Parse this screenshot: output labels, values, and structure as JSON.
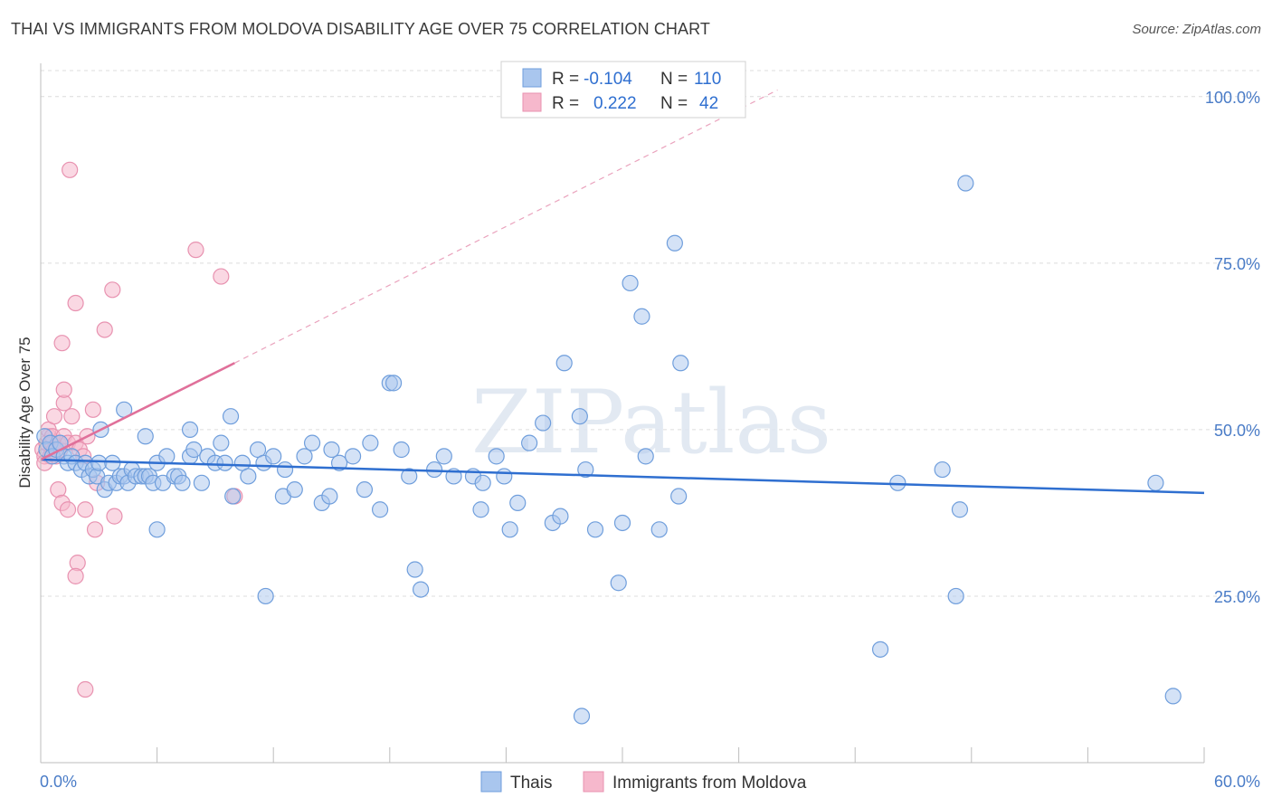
{
  "header": {
    "title": "THAI VS IMMIGRANTS FROM MOLDOVA DISABILITY AGE OVER 75 CORRELATION CHART",
    "source": "Source: ZipAtlas.com"
  },
  "colors": {
    "blue": "#2f6fd0",
    "blue_fill": "#a9c6ee",
    "pink": "#e0709a",
    "pink_fill": "#f6b8cc",
    "grid": "#d9d9d9",
    "tick_label": "#4a7cc7"
  },
  "chart_data": {
    "type": "scatter",
    "title": "THAI VS IMMIGRANTS FROM MOLDOVA DISABILITY AGE OVER 75 CORRELATION CHART",
    "xlabel": "",
    "ylabel": "Disability Age Over 75",
    "xlim": [
      0,
      60
    ],
    "ylim": [
      0,
      105
    ],
    "x_tick_labels": [
      "0.0%",
      "60.0%"
    ],
    "y_tick_values": [
      25,
      50,
      75,
      100
    ],
    "y_tick_labels": [
      "25.0%",
      "50.0%",
      "75.0%",
      "100.0%"
    ],
    "watermark": "ZIPatlas",
    "legend": {
      "position": "top-center",
      "entries": [
        {
          "r_label": "R =",
          "r_value": "-0.104",
          "n_label": "N =",
          "n_value": "110"
        },
        {
          "r_label": "R =",
          "r_value": "0.222",
          "n_label": "N =",
          "n_value": "42"
        }
      ]
    },
    "bottom_legend": [
      "Thais",
      "Immigrants from Moldova"
    ],
    "series": [
      {
        "name": "Thais",
        "color": "#2f6fd0",
        "trend": {
          "x": [
            0,
            60
          ],
          "y": [
            45.5,
            40.5
          ]
        },
        "points": [
          [
            0.2,
            49
          ],
          [
            0.3,
            47
          ],
          [
            0.5,
            48
          ],
          [
            0.6,
            46
          ],
          [
            0.8,
            47
          ],
          [
            1.0,
            48
          ],
          [
            1.2,
            46
          ],
          [
            1.4,
            45
          ],
          [
            1.6,
            46
          ],
          [
            1.8,
            45
          ],
          [
            2.1,
            44
          ],
          [
            2.3,
            45
          ],
          [
            2.5,
            43
          ],
          [
            2.7,
            44
          ],
          [
            2.9,
            43
          ],
          [
            3.0,
            45
          ],
          [
            3.3,
            41
          ],
          [
            3.5,
            42
          ],
          [
            3.7,
            45
          ],
          [
            3.9,
            42
          ],
          [
            4.1,
            43
          ],
          [
            4.3,
            43
          ],
          [
            4.5,
            42
          ],
          [
            4.7,
            44
          ],
          [
            4.9,
            43
          ],
          [
            5.2,
            43
          ],
          [
            5.4,
            43
          ],
          [
            5.6,
            43
          ],
          [
            5.8,
            42
          ],
          [
            6.0,
            45
          ],
          [
            6.3,
            42
          ],
          [
            6.5,
            46
          ],
          [
            6.9,
            43
          ],
          [
            7.1,
            43
          ],
          [
            7.3,
            42
          ],
          [
            7.7,
            46
          ],
          [
            7.9,
            47
          ],
          [
            8.3,
            42
          ],
          [
            8.6,
            46
          ],
          [
            9.0,
            45
          ],
          [
            9.3,
            48
          ],
          [
            9.5,
            45
          ],
          [
            9.9,
            40
          ],
          [
            10.4,
            45
          ],
          [
            10.7,
            43
          ],
          [
            11.2,
            47
          ],
          [
            11.5,
            45
          ],
          [
            12.0,
            46
          ],
          [
            12.5,
            40
          ],
          [
            13.1,
            41
          ],
          [
            13.6,
            46
          ],
          [
            14.0,
            48
          ],
          [
            14.5,
            39
          ],
          [
            14.9,
            40
          ],
          [
            15.4,
            45
          ],
          [
            16.1,
            46
          ],
          [
            16.7,
            41
          ],
          [
            17.0,
            48
          ],
          [
            17.5,
            38
          ],
          [
            18.0,
            57
          ],
          [
            18.6,
            47
          ],
          [
            9.8,
            52
          ],
          [
            7.7,
            50
          ],
          [
            4.3,
            53
          ],
          [
            5.4,
            49
          ],
          [
            3.1,
            50
          ],
          [
            19.0,
            43
          ],
          [
            19.3,
            29
          ],
          [
            19.6,
            26
          ],
          [
            20.3,
            44
          ],
          [
            20.8,
            46
          ],
          [
            21.3,
            43
          ],
          [
            22.3,
            43
          ],
          [
            22.7,
            38
          ],
          [
            22.8,
            42
          ],
          [
            23.5,
            46
          ],
          [
            23.9,
            43
          ],
          [
            24.2,
            35
          ],
          [
            24.6,
            39
          ],
          [
            25.2,
            48
          ],
          [
            25.9,
            51
          ],
          [
            26.4,
            36
          ],
          [
            26.8,
            37
          ],
          [
            27.0,
            60
          ],
          [
            27.8,
            52
          ],
          [
            28.1,
            44
          ],
          [
            28.6,
            35
          ],
          [
            29.8,
            27
          ],
          [
            30.0,
            36
          ],
          [
            30.4,
            72
          ],
          [
            31.0,
            67
          ],
          [
            31.2,
            46
          ],
          [
            31.9,
            35
          ],
          [
            32.7,
            78
          ],
          [
            32.9,
            40
          ],
          [
            33.0,
            60
          ],
          [
            43.3,
            17
          ],
          [
            44.2,
            42
          ],
          [
            46.5,
            44
          ],
          [
            47.2,
            25
          ],
          [
            47.4,
            38
          ],
          [
            47.7,
            87
          ],
          [
            57.5,
            42
          ],
          [
            58.4,
            10
          ],
          [
            27.9,
            7
          ],
          [
            18.2,
            57
          ],
          [
            15.0,
            47
          ],
          [
            11.6,
            25
          ],
          [
            6.0,
            35
          ],
          [
            12.6,
            44
          ]
        ]
      },
      {
        "name": "Immigrants from Moldova",
        "color": "#e0709a",
        "trend": {
          "x": [
            0,
            10
          ],
          "y": [
            45.5,
            60
          ]
        },
        "trend_ext": {
          "x": [
            10,
            38
          ],
          "y": [
            60,
            101
          ]
        },
        "points": [
          [
            0.1,
            47
          ],
          [
            0.2,
            46
          ],
          [
            0.3,
            48
          ],
          [
            0.4,
            49
          ],
          [
            0.5,
            46
          ],
          [
            0.6,
            48
          ],
          [
            0.7,
            47
          ],
          [
            0.8,
            46
          ],
          [
            0.9,
            48
          ],
          [
            0.2,
            45
          ],
          [
            0.4,
            50
          ],
          [
            0.6,
            49
          ],
          [
            1.0,
            47
          ],
          [
            1.2,
            49
          ],
          [
            1.4,
            48
          ],
          [
            0.7,
            52
          ],
          [
            1.2,
            54
          ],
          [
            1.6,
            52
          ],
          [
            1.2,
            56
          ],
          [
            1.1,
            63
          ],
          [
            1.8,
            48
          ],
          [
            2.0,
            47
          ],
          [
            2.2,
            46
          ],
          [
            2.4,
            49
          ],
          [
            2.7,
            53
          ],
          [
            1.5,
            89
          ],
          [
            1.8,
            69
          ],
          [
            3.3,
            65
          ],
          [
            3.7,
            71
          ],
          [
            8.0,
            77
          ],
          [
            9.3,
            73
          ],
          [
            0.9,
            41
          ],
          [
            1.1,
            39
          ],
          [
            1.4,
            38
          ],
          [
            2.3,
            38
          ],
          [
            2.9,
            42
          ],
          [
            3.8,
            37
          ],
          [
            10.0,
            40
          ],
          [
            2.8,
            35
          ],
          [
            1.9,
            30
          ],
          [
            1.8,
            28
          ],
          [
            2.3,
            11
          ]
        ]
      }
    ]
  }
}
